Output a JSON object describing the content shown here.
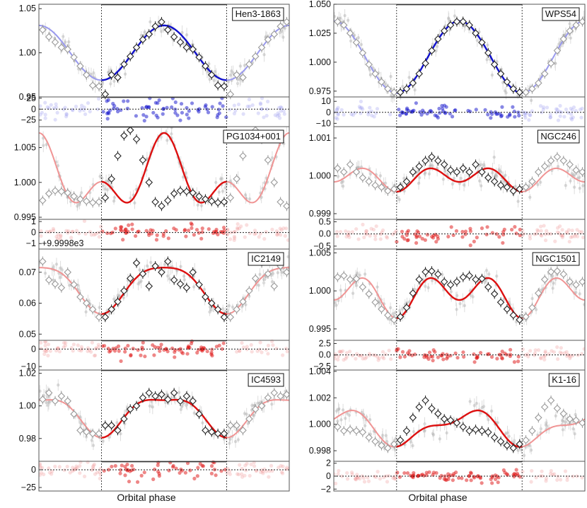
{
  "figure": {
    "xlabel": "Orbital phase",
    "x_range": [
      -0.5,
      1.5
    ],
    "highlight_range": [
      0,
      1
    ],
    "colors": {
      "blue_dark": "#1010cc",
      "blue_light": "#9999ee",
      "red_dark": "#dd1010",
      "red_light": "#f09494",
      "data_grey": "#9a9a9a",
      "frame": "#555555"
    }
  },
  "chart_data": [
    {
      "type": "line",
      "name": "Hen3-1863",
      "title": "Hen3-1863",
      "color": "blue",
      "model": {
        "kind": "sine",
        "mean": 1.0,
        "terms": [
          [
            1,
            0,
            0.031
          ]
        ]
      },
      "ylim": [
        0.95,
        1.055
      ],
      "yticks": [
        0.95,
        1.0,
        1.05
      ],
      "ytick_labels": [
        "0.95",
        "1.00",
        "1.05"
      ],
      "binned_phase": [
        0.03,
        0.08,
        0.13,
        0.18,
        0.23,
        0.28,
        0.33,
        0.38,
        0.43,
        0.48,
        0.53,
        0.58,
        0.63,
        0.68,
        0.73,
        0.78,
        0.83,
        0.88,
        0.93,
        0.98
      ],
      "binned_flux": [
        0.953,
        0.975,
        0.972,
        0.987,
        0.996,
        1.006,
        1.015,
        1.021,
        1.03,
        1.035,
        1.026,
        1.018,
        1.012,
        1.006,
        1.004,
        0.995,
        0.985,
        0.975,
        0.963,
        0.962
      ],
      "residuals": {
        "ylim": [
          -40,
          28
        ],
        "yticks": [
          -25,
          0,
          25
        ],
        "ytick_labels": [
          "−25",
          "0",
          "25"
        ],
        "scatter": 22
      }
    },
    {
      "type": "line",
      "name": "WPS54",
      "title": "WPS54",
      "color": "blue",
      "model": {
        "kind": "sine",
        "mean": 1.0045,
        "terms": [
          [
            1,
            0,
            0.031
          ]
        ]
      },
      "ylim": [
        0.97,
        1.05
      ],
      "yticks": [
        0.975,
        1.0,
        1.025,
        1.05
      ],
      "ytick_labels": [
        "0.975",
        "1.000",
        "1.025",
        "1.050"
      ],
      "binned_phase": [
        0.03,
        0.08,
        0.13,
        0.18,
        0.23,
        0.28,
        0.33,
        0.38,
        0.43,
        0.48,
        0.53,
        0.58,
        0.63,
        0.68,
        0.73,
        0.78,
        0.83,
        0.88,
        0.93,
        0.98
      ],
      "binned_flux": [
        0.974,
        0.977,
        0.982,
        0.99,
        0.999,
        1.01,
        1.02,
        1.027,
        1.032,
        1.035,
        1.035,
        1.032,
        1.025,
        1.017,
        1.008,
        0.998,
        0.99,
        0.983,
        0.977,
        0.974
      ],
      "residuals": {
        "ylim": [
          -13,
          14
        ],
        "yticks": [
          -10,
          0,
          10
        ],
        "ytick_labels": [
          "−10",
          "0",
          "10"
        ],
        "scatter": 6
      }
    },
    {
      "type": "line",
      "name": "PG1034+001",
      "title": "PG1034+001",
      "color": "red",
      "model": {
        "kind": "sine",
        "mean": 1.0006,
        "terms": [
          [
            1,
            0,
            0.0035
          ],
          [
            2,
            0,
            0.003
          ]
        ]
      },
      "ylim": [
        0.9947,
        1.008
      ],
      "yticks": [
        0.995,
        1.0,
        1.005
      ],
      "ytick_labels": [
        "0.995",
        "1.000",
        "1.005"
      ],
      "binned_phase": [
        0.03,
        0.08,
        0.13,
        0.18,
        0.23,
        0.28,
        0.33,
        0.38,
        0.43,
        0.48,
        0.53,
        0.58,
        0.63,
        0.68,
        0.73,
        0.78,
        0.83,
        0.88,
        0.93,
        0.98
      ],
      "binned_flux": [
        0.9978,
        1.0005,
        1.0038,
        1.0067,
        1.0075,
        1.0062,
        1.0032,
        1.0,
        0.9972,
        0.9966,
        0.9974,
        0.9984,
        0.9988,
        0.9987,
        0.9985,
        0.998,
        0.9976,
        0.9973,
        0.9971,
        0.9972
      ],
      "residuals": {
        "ylim": [
          -1.5,
          1.2
        ],
        "yticks": [
          -1,
          0,
          1
        ],
        "ytick_labels": [
          "−1",
          "0",
          "1"
        ],
        "scatter": 0.6,
        "offset_label": "+9.9998e3"
      }
    },
    {
      "type": "line",
      "name": "NGC246",
      "title": "NGC246",
      "color": "red",
      "model": {
        "kind": "sine",
        "mean": 0.99995,
        "terms": [
          [
            1,
            0,
            0.00013
          ],
          [
            2,
            0,
            -0.00024
          ]
        ]
      },
      "ylim": [
        0.99885,
        1.0013
      ],
      "yticks": [
        0.999,
        1.0,
        1.001
      ],
      "ytick_labels": [
        "0.999",
        "1.000",
        "1.001"
      ],
      "binned_phase": [
        0.03,
        0.08,
        0.13,
        0.18,
        0.23,
        0.28,
        0.33,
        0.38,
        0.43,
        0.48,
        0.53,
        0.58,
        0.63,
        0.68,
        0.73,
        0.78,
        0.83,
        0.88,
        0.93,
        0.98
      ],
      "binned_flux": [
        0.9997,
        0.99985,
        1.0001,
        1.00025,
        1.0004,
        1.0005,
        1.0004,
        1.0003,
        1.00015,
        1.0001,
        1.0002,
        1.0001,
        1.0003,
        1.0001,
        0.99995,
        0.99985,
        0.99975,
        0.9997,
        0.9996,
        0.99965
      ],
      "residuals": {
        "ylim": [
          -0.62,
          0.6
        ],
        "yticks": [
          -0.5,
          0.0,
          0.5
        ],
        "ytick_labels": [
          "−0.5",
          "0.0",
          "0.5"
        ],
        "scatter": 0.3
      }
    },
    {
      "type": "line",
      "name": "IC2149",
      "title": "IC2149",
      "color": "red",
      "model": {
        "kind": "sine",
        "mean": 0.0655,
        "terms": [
          [
            1,
            0,
            0.0075
          ],
          [
            2,
            0,
            -0.0015
          ]
        ]
      },
      "ylim": [
        0.048,
        0.0775
      ],
      "yticks": [
        0.05,
        0.06,
        0.07
      ],
      "ytick_labels": [
        "0.05",
        "0.06",
        "0.07"
      ],
      "binned_phase": [
        0.03,
        0.08,
        0.13,
        0.18,
        0.23,
        0.28,
        0.33,
        0.38,
        0.43,
        0.48,
        0.53,
        0.58,
        0.63,
        0.68,
        0.73,
        0.78,
        0.83,
        0.88,
        0.93,
        0.98
      ],
      "binned_flux": [
        0.0555,
        0.058,
        0.0605,
        0.064,
        0.068,
        0.073,
        0.0695,
        0.0655,
        0.072,
        0.07,
        0.0735,
        0.0675,
        0.0662,
        0.065,
        0.07,
        0.066,
        0.062,
        0.06,
        0.058,
        0.0555
      ],
      "residuals": {
        "ylim": [
          -12,
          5
        ],
        "yticks": [
          -10,
          0
        ],
        "ytick_labels": [
          "−10",
          "0"
        ],
        "scatter": 4
      }
    },
    {
      "type": "line",
      "name": "NGC1501",
      "title": "NGC1501",
      "color": "red",
      "model": {
        "kind": "sine",
        "mean": 0.9996,
        "terms": [
          [
            1,
            0,
            0.0012
          ],
          [
            2,
            0,
            -0.002
          ]
        ]
      },
      "ylim": [
        0.9935,
        1.0055
      ],
      "yticks": [
        0.995,
        1.0,
        1.005
      ],
      "ytick_labels": [
        "0.995",
        "1.000",
        "1.005"
      ],
      "binned_phase": [
        0.03,
        0.08,
        0.13,
        0.18,
        0.23,
        0.28,
        0.33,
        0.38,
        0.43,
        0.48,
        0.53,
        0.58,
        0.63,
        0.68,
        0.73,
        0.78,
        0.83,
        0.88,
        0.93,
        0.98
      ],
      "binned_flux": [
        0.9966,
        0.9978,
        0.9997,
        1.0015,
        1.0025,
        1.0026,
        1.0022,
        1.0012,
        1.0008,
        1.0012,
        1.0018,
        1.002,
        1.0015,
        1.0016,
        1.0005,
        0.9996,
        0.9985,
        0.9976,
        0.9968,
        0.9962
      ],
      "residuals": {
        "ylim": [
          -3.3,
          3.2
        ],
        "yticks": [
          -2.5,
          0.0,
          2.5
        ],
        "ytick_labels": [
          "−2.5",
          "0.0",
          "2.5"
        ],
        "scatter": 1.2
      }
    },
    {
      "type": "line",
      "name": "IC4593",
      "title": "IC4593",
      "color": "red",
      "model": {
        "kind": "sine",
        "mean": 0.9955,
        "terms": [
          [
            1,
            0,
            0.0115
          ],
          [
            2,
            0,
            -0.0035
          ]
        ]
      },
      "ylim": [
        0.966,
        1.022
      ],
      "yticks": [
        0.98,
        1.0,
        1.02
      ],
      "ytick_labels": [
        "0.98",
        "1.00",
        "1.02"
      ],
      "binned_phase": [
        0.03,
        0.08,
        0.13,
        0.18,
        0.23,
        0.28,
        0.33,
        0.38,
        0.43,
        0.48,
        0.53,
        0.58,
        0.63,
        0.68,
        0.73,
        0.78,
        0.83,
        0.88,
        0.93,
        0.98
      ],
      "binned_flux": [
        0.988,
        0.988,
        0.985,
        0.992,
        0.998,
        1.0,
        1.005,
        1.008,
        1.006,
        1.007,
        1.004,
        1.008,
        1.003,
        1.006,
        1.003,
        0.995,
        0.985,
        0.984,
        0.983,
        0.983
      ],
      "residuals": {
        "ylim": [
          -30,
          12
        ],
        "yticks": [
          -25,
          0
        ],
        "ytick_labels": [
          "−25",
          "0"
        ],
        "scatter": 10
      }
    },
    {
      "type": "line",
      "name": "K1-16",
      "title": "K1-16",
      "color": "red",
      "model": {
        "kind": "sine",
        "mean": 0.99975,
        "terms": [
          [
            1,
            0.05,
            0.0011
          ],
          [
            2,
            -0.05,
            -0.0005
          ]
        ]
      },
      "ylim": [
        0.9972,
        1.0041
      ],
      "yticks": [
        0.998,
        1.0,
        1.002,
        1.004
      ],
      "ytick_labels": [
        "0.998",
        "1.000",
        "1.002",
        "1.004"
      ],
      "binned_phase": [
        0.03,
        0.08,
        0.13,
        0.18,
        0.23,
        0.28,
        0.33,
        0.38,
        0.43,
        0.48,
        0.53,
        0.58,
        0.63,
        0.68,
        0.73,
        0.78,
        0.83,
        0.88,
        0.93,
        0.98
      ],
      "binned_flux": [
        0.9988,
        0.9995,
        1.0005,
        1.0013,
        1.0018,
        1.0012,
        1.0008,
        1.0004,
        1.0003,
        1.0001,
        0.9998,
        0.9995,
        0.9996,
        0.9995,
        0.9994,
        0.999,
        0.9987,
        0.9984,
        0.9982,
        0.9985
      ],
      "residuals": {
        "ylim": [
          -2.3,
          2.3
        ],
        "yticks": [
          -2,
          0,
          2
        ],
        "ytick_labels": [
          "−2",
          "0",
          "2"
        ],
        "scatter": 0.8
      }
    }
  ]
}
